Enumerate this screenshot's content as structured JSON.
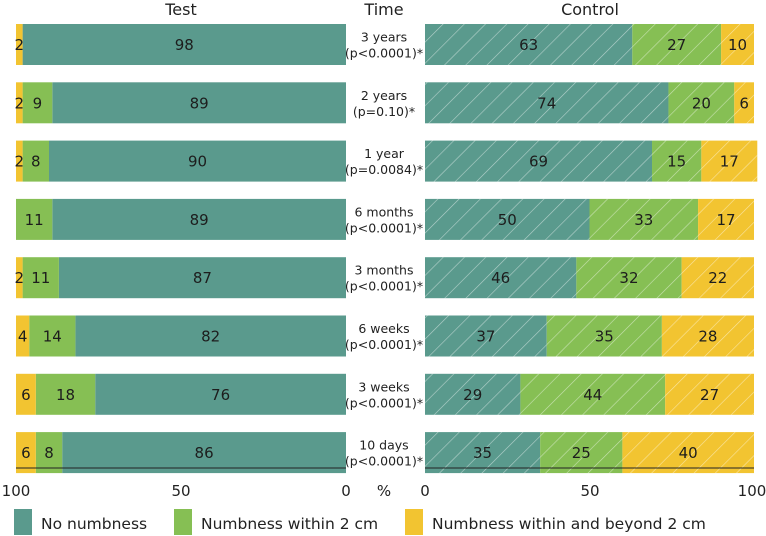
{
  "chart_data": {
    "type": "bar",
    "subtype": "diverging-stacked-100",
    "headers": {
      "left": "Test",
      "middle": "Time",
      "right": "Control"
    },
    "rows": [
      {
        "time": "3 years",
        "p": "(p<0.0001)*",
        "test": [
          98,
          0,
          2
        ],
        "control": [
          63,
          27,
          10
        ]
      },
      {
        "time": "2 years",
        "p": "(p=0.10)*",
        "test": [
          89,
          9,
          2
        ],
        "control": [
          74,
          20,
          6
        ]
      },
      {
        "time": "1 year",
        "p": "(p=0.0084)*",
        "test": [
          90,
          8,
          2
        ],
        "control": [
          69,
          15,
          17
        ]
      },
      {
        "time": "6 months",
        "p": "(p<0.0001)*",
        "test": [
          89,
          11,
          0
        ],
        "control": [
          50,
          33,
          17
        ]
      },
      {
        "time": "3 months",
        "p": "(p<0.0001)*",
        "test": [
          87,
          11,
          2
        ],
        "control": [
          46,
          32,
          22
        ]
      },
      {
        "time": "6 weeks",
        "p": "(p<0.0001)*",
        "test": [
          82,
          14,
          4
        ],
        "control": [
          37,
          35,
          28
        ]
      },
      {
        "time": "3 weeks",
        "p": "(p<0.0001)*",
        "test": [
          76,
          18,
          6
        ],
        "control": [
          29,
          44,
          27
        ]
      },
      {
        "time": "10 days",
        "p": "(p<0.0001)*",
        "test": [
          86,
          8,
          6
        ],
        "control": [
          35,
          25,
          40
        ]
      }
    ],
    "series": [
      {
        "name": "No numbness",
        "color": "#5a9a8d"
      },
      {
        "name": "Numbness within 2 cm",
        "color": "#86bf54"
      },
      {
        "name": "Numbness within and beyond 2 cm",
        "color": "#f2c431"
      }
    ],
    "hatched": "control",
    "xaxis_left": {
      "ticks": [
        "100",
        "50",
        "0"
      ]
    },
    "xaxis_unit": "%",
    "xaxis_right": {
      "ticks": [
        "0",
        "50",
        "100"
      ]
    },
    "xlim": [
      0,
      100
    ]
  }
}
